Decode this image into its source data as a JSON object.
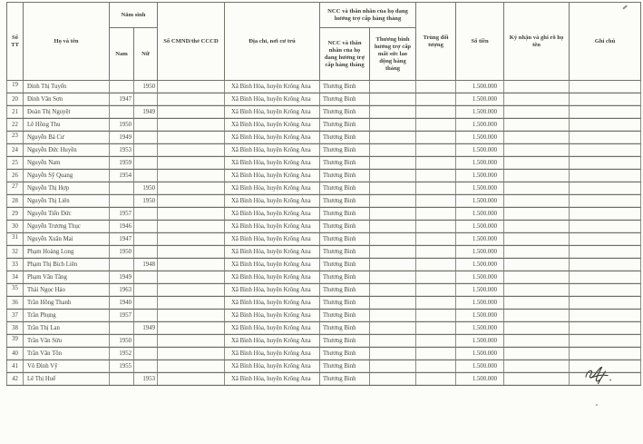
{
  "document": {
    "header": {
      "stt": "Số TT",
      "name": "Họ và tên",
      "birth_group": "Năm sinh",
      "nam": "Nam",
      "nu": "Nữ",
      "cmnd": "Số CMND/thẻ CCCD",
      "address": "Địa chỉ, nơi cư trú",
      "ncc_group": "NCC và thân nhân của họ đang hưởng trợ cấp hàng tháng",
      "ncc_sub": "NCC và thân nhân của họ đang hưởng trợ cấp hàng tháng",
      "tb_sub": "Thương binh hưởng trợ cấp mất sức lao động hàng tháng",
      "trung": "Trùng đối tượng",
      "amount": "Số tiền",
      "sign": "Ký nhận và ghi rõ họ tên",
      "note": "Ghi chú"
    },
    "row_fields": [
      "stt",
      "name",
      "nam",
      "nu",
      "cmnd",
      "address",
      "ncc",
      "tb",
      "trung",
      "amount",
      "sign",
      "note"
    ],
    "rows": [
      {
        "stt": "19",
        "name": "Đinh Thị Tuyển",
        "nam": "",
        "nu": "1950",
        "cmnd": "",
        "address": "Xã Bình Hòa, huyện Krông Ana",
        "ncc": "Thương Binh",
        "tb": "",
        "trung": "",
        "amount": "1.500.000",
        "sign": "",
        "note": ""
      },
      {
        "stt": "20",
        "name": "Đinh Văn Sơn",
        "nam": "1947",
        "nu": "",
        "cmnd": "",
        "address": "Xã Bình Hòa, huyện Krông Ana",
        "ncc": "Thương Binh",
        "tb": "",
        "trung": "",
        "amount": "1.500.000",
        "sign": "",
        "note": ""
      },
      {
        "stt": "21",
        "name": "Đoàn Thị Nguyệt",
        "nam": "",
        "nu": "1949",
        "cmnd": "",
        "address": "Xã Bình Hòa, huyện Krông Ana",
        "ncc": "Thương Binh",
        "tb": "",
        "trung": "",
        "amount": "1.500.000",
        "sign": "",
        "note": ""
      },
      {
        "stt": "22",
        "name": "Lê Hồng Thu",
        "nam": "1950",
        "nu": "",
        "cmnd": "",
        "address": "Xã Bình Hòa, huyện Krông Ana",
        "ncc": "Thương Binh",
        "tb": "",
        "trung": "",
        "amount": "1.500.000",
        "sign": "",
        "note": ""
      },
      {
        "stt": "23",
        "name": "Nguyễn Bá Cư",
        "nam": "1949",
        "nu": "",
        "cmnd": "",
        "address": "Xã Bình Hòa, huyện Krông Ana",
        "ncc": "Thương Binh",
        "tb": "",
        "trung": "",
        "amount": "1.500.000",
        "sign": "",
        "note": ""
      },
      {
        "stt": "24",
        "name": "Nguyễn Đức Huyền",
        "nam": "1953",
        "nu": "",
        "cmnd": "",
        "address": "Xã Bình Hòa, huyện Krông Ana",
        "ncc": "Thương Binh",
        "tb": "",
        "trung": "",
        "amount": "1.500.000",
        "sign": "",
        "note": ""
      },
      {
        "stt": "25",
        "name": "Nguyễn Nam",
        "nam": "1959",
        "nu": "",
        "cmnd": "",
        "address": "Xã Bình Hòa, huyện Krông Ana",
        "ncc": "Thương Binh",
        "tb": "",
        "trung": "",
        "amount": "1.500.000",
        "sign": "",
        "note": ""
      },
      {
        "stt": "26",
        "name": "Nguyễn Sỹ Quang",
        "nam": "1954",
        "nu": "",
        "cmnd": "",
        "address": "Xã Bình Hòa, huyện Krông Ana",
        "ncc": "Thương Binh",
        "tb": "",
        "trung": "",
        "amount": "1.500.000",
        "sign": "",
        "note": ""
      },
      {
        "stt": "27",
        "name": "Nguyễn Thị Hợp",
        "nam": "",
        "nu": "1950",
        "cmnd": "",
        "address": "Xã Bình Hòa, huyện Krông Ana",
        "ncc": "Thương Binh",
        "tb": "",
        "trung": "",
        "amount": "1.500.000",
        "sign": "",
        "note": ""
      },
      {
        "stt": "28",
        "name": "Nguyễn Thị Liên",
        "nam": "",
        "nu": "1950",
        "cmnd": "",
        "address": "Xã Bình Hòa, huyện Krông Ana",
        "ncc": "Thương Binh",
        "tb": "",
        "trung": "",
        "amount": "1.500.000",
        "sign": "",
        "note": ""
      },
      {
        "stt": "29",
        "name": "Nguyễn Tiến Đức",
        "nam": "1957",
        "nu": "",
        "cmnd": "",
        "address": "Xã Bình Hòa, huyện Krông Ana",
        "ncc": "Thương Binh",
        "tb": "",
        "trung": "",
        "amount": "1.500.000",
        "sign": "",
        "note": ""
      },
      {
        "stt": "30",
        "name": "Nguyễn Trương Thục",
        "nam": "1946",
        "nu": "",
        "cmnd": "",
        "address": "Xã Bình Hòa, huyện Krông Ana",
        "ncc": "Thương Binh",
        "tb": "",
        "trung": "",
        "amount": "1.500.000",
        "sign": "",
        "note": ""
      },
      {
        "stt": "31",
        "name": "Nguyễn Xuân Mai",
        "nam": "1947",
        "nu": "",
        "cmnd": "",
        "address": "Xã Bình Hòa, huyện Krông Ana",
        "ncc": "Thương Binh",
        "tb": "",
        "trung": "",
        "amount": "1.500.000",
        "sign": "",
        "note": ""
      },
      {
        "stt": "32",
        "name": "Phạm Hoàng Long",
        "nam": "1950",
        "nu": "",
        "cmnd": "",
        "address": "Xã Bình Hòa, huyện Krông Ana",
        "ncc": "Thương Binh",
        "tb": "",
        "trung": "",
        "amount": "1.500.000",
        "sign": "",
        "note": ""
      },
      {
        "stt": "33",
        "name": "Phạm Thị Bích Liên",
        "nam": "",
        "nu": "1948",
        "cmnd": "",
        "address": "Xã Bình Hòa, huyện Krông Ana",
        "ncc": "Thương Binh",
        "tb": "",
        "trung": "",
        "amount": "1.500.000",
        "sign": "",
        "note": ""
      },
      {
        "stt": "34",
        "name": "Phạm Văn Tăng",
        "nam": "1949",
        "nu": "",
        "cmnd": "",
        "address": "Xã Bình Hòa, huyện Krông Ana",
        "ncc": "Thương Binh",
        "tb": "",
        "trung": "",
        "amount": "1.500.000",
        "sign": "",
        "note": ""
      },
      {
        "stt": "35",
        "name": "Thái Ngọc Hảo",
        "nam": "1963",
        "nu": "",
        "cmnd": "",
        "address": "Xã Bình Hòa, huyện Krông Ana",
        "ncc": "Thương Binh",
        "tb": "",
        "trung": "",
        "amount": "1.500.000",
        "sign": "",
        "note": ""
      },
      {
        "stt": "36",
        "name": "Trần Hồng Thanh",
        "nam": "1940",
        "nu": "",
        "cmnd": "",
        "address": "Xã Bình Hòa, huyện Krông Ana",
        "ncc": "Thương Binh",
        "tb": "",
        "trung": "",
        "amount": "1.500.000",
        "sign": "",
        "note": ""
      },
      {
        "stt": "37",
        "name": "Trần Phụng",
        "nam": "1957",
        "nu": "",
        "cmnd": "",
        "address": "Xã Bình Hòa, huyện Krông Ana",
        "ncc": "Thương Binh",
        "tb": "",
        "trung": "",
        "amount": "1.500.000",
        "sign": "",
        "note": ""
      },
      {
        "stt": "38",
        "name": "Trần Thị Lan",
        "nam": "",
        "nu": "1949",
        "cmnd": "",
        "address": "Xã Bình Hòa, huyện Krông Ana",
        "ncc": "Thương Binh",
        "tb": "",
        "trung": "",
        "amount": "1.500.000",
        "sign": "",
        "note": ""
      },
      {
        "stt": "39",
        "name": "Trần Văn Sửu",
        "nam": "1950",
        "nu": "",
        "cmnd": "",
        "address": "Xã Bình Hòa, huyện Krông Ana",
        "ncc": "Thương Binh",
        "tb": "",
        "trung": "",
        "amount": "1.500.000",
        "sign": "",
        "note": ""
      },
      {
        "stt": "40",
        "name": "Trần Văn Tồn",
        "nam": "1952",
        "nu": "",
        "cmnd": "",
        "address": "Xã Bình Hòa, huyện Krông Ana",
        "ncc": "Thương Binh",
        "tb": "",
        "trung": "",
        "amount": "1.500.000",
        "sign": "",
        "note": ""
      },
      {
        "stt": "41",
        "name": "Võ Đình Vỹ",
        "nam": "1955",
        "nu": "",
        "cmnd": "",
        "address": "Xã Bình Hòa, huyện Krông Ana",
        "ncc": "Thương Binh",
        "tb": "",
        "trung": "",
        "amount": "1.500.000",
        "sign": "",
        "note": ""
      },
      {
        "stt": "42",
        "name": "Lê Thị Huế",
        "nam": "",
        "nu": "1953",
        "cmnd": "",
        "address": "Xã Bình Hòa, huyện Krông Ana",
        "ncc": "Thương Binh",
        "tb": "",
        "trung": "",
        "amount": "1.500.000",
        "sign": "",
        "note": ""
      }
    ],
    "handwritten_mark": "illegible signature scribble at bottom-right of last row"
  }
}
